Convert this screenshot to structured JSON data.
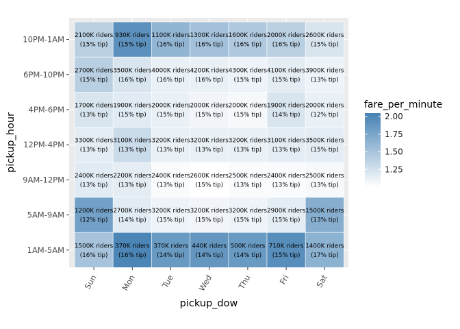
{
  "chart_data": {
    "type": "heatmap",
    "xlabel": "pickup_dow",
    "ylabel": "pickup_hour",
    "x_categories": [
      "Sun",
      "Mon",
      "Tue",
      "Wed",
      "Thu",
      "Fri",
      "Sat"
    ],
    "y_categories": [
      "10PM-1AM",
      "6PM-10PM",
      "4PM-6PM",
      "12PM-4PM",
      "9AM-12PM",
      "5AM-9AM",
      "1AM-5AM"
    ],
    "fill_variable": "fare_per_minute",
    "fill_range": [
      1.0,
      2.05
    ],
    "colors": {
      "low": "#ffffff",
      "high": "#4682b4",
      "panel": "#ebebeb"
    },
    "legend": {
      "title": "fare_per_minute",
      "ticks": [
        "2.00",
        "1.75",
        "1.50",
        "1.25"
      ],
      "tick_values": [
        2.0,
        1.75,
        1.5,
        1.25
      ],
      "placement": "right"
    },
    "grid": true,
    "cells": [
      [
        {
          "fare_per_minute": 1.4,
          "riders": "2100K riders",
          "tip": "(15% tip)"
        },
        {
          "fare_per_minute": 1.92,
          "riders": "930K riders",
          "tip": "(15% tip)"
        },
        {
          "fare_per_minute": 1.62,
          "riders": "1100K riders",
          "tip": "(16% tip)"
        },
        {
          "fare_per_minute": 1.52,
          "riders": "1300K riders",
          "tip": "(16% tip)"
        },
        {
          "fare_per_minute": 1.45,
          "riders": "1600K riders",
          "tip": "(16% tip)"
        },
        {
          "fare_per_minute": 1.4,
          "riders": "2000K riders",
          "tip": "(16% tip)"
        },
        {
          "fare_per_minute": 1.22,
          "riders": "2600K riders",
          "tip": "(15% tip)"
        }
      ],
      [
        {
          "fare_per_minute": 1.4,
          "riders": "2700K riders",
          "tip": "(15% tip)"
        },
        {
          "fare_per_minute": 1.22,
          "riders": "3500K riders",
          "tip": "(16% tip)"
        },
        {
          "fare_per_minute": 1.12,
          "riders": "4000K riders",
          "tip": "(16% tip)"
        },
        {
          "fare_per_minute": 1.12,
          "riders": "4200K riders",
          "tip": "(16% tip)"
        },
        {
          "fare_per_minute": 1.1,
          "riders": "4300K riders",
          "tip": "(15% tip)"
        },
        {
          "fare_per_minute": 1.15,
          "riders": "4100K riders",
          "tip": "(15% tip)"
        },
        {
          "fare_per_minute": 1.1,
          "riders": "3900K riders",
          "tip": "(13% tip)"
        }
      ],
      [
        {
          "fare_per_minute": 1.22,
          "riders": "1700K riders",
          "tip": "(13% tip)"
        },
        {
          "fare_per_minute": 1.17,
          "riders": "1900K riders",
          "tip": "(15% tip)"
        },
        {
          "fare_per_minute": 1.12,
          "riders": "2000K riders",
          "tip": "(15% tip)"
        },
        {
          "fare_per_minute": 1.08,
          "riders": "2000K riders",
          "tip": "(15% tip)"
        },
        {
          "fare_per_minute": 1.05,
          "riders": "2000K riders",
          "tip": "(15% tip)"
        },
        {
          "fare_per_minute": 1.22,
          "riders": "1900K riders",
          "tip": "(14% tip)"
        },
        {
          "fare_per_minute": 1.12,
          "riders": "2000K riders",
          "tip": "(12% tip)"
        }
      ],
      [
        {
          "fare_per_minute": 1.15,
          "riders": "3300K riders",
          "tip": "(13% tip)"
        },
        {
          "fare_per_minute": 1.3,
          "riders": "3100K riders",
          "tip": "(13% tip)"
        },
        {
          "fare_per_minute": 1.12,
          "riders": "3200K riders",
          "tip": "(13% tip)"
        },
        {
          "fare_per_minute": 1.12,
          "riders": "3200K riders",
          "tip": "(13% tip)"
        },
        {
          "fare_per_minute": 1.12,
          "riders": "3200K riders",
          "tip": "(13% tip)"
        },
        {
          "fare_per_minute": 1.15,
          "riders": "3100K riders",
          "tip": "(13% tip)"
        },
        {
          "fare_per_minute": 1.15,
          "riders": "3500K riders",
          "tip": "(15% tip)"
        }
      ],
      [
        {
          "fare_per_minute": 1.17,
          "riders": "2400K riders",
          "tip": "(13% tip)"
        },
        {
          "fare_per_minute": 1.15,
          "riders": "2200K riders",
          "tip": "(13% tip)"
        },
        {
          "fare_per_minute": 1.03,
          "riders": "2400K riders",
          "tip": "(13% tip)"
        },
        {
          "fare_per_minute": 1.0,
          "riders": "2600K riders",
          "tip": "(15% tip)"
        },
        {
          "fare_per_minute": 1.03,
          "riders": "2500K riders",
          "tip": "(13% tip)"
        },
        {
          "fare_per_minute": 1.03,
          "riders": "2400K riders",
          "tip": "(13% tip)"
        },
        {
          "fare_per_minute": 1.05,
          "riders": "2500K riders",
          "tip": "(13% tip)"
        }
      ],
      [
        {
          "fare_per_minute": 1.8,
          "riders": "1200K riders",
          "tip": "(12% tip)"
        },
        {
          "fare_per_minute": 1.17,
          "riders": "2700K riders",
          "tip": "(14% tip)"
        },
        {
          "fare_per_minute": 1.1,
          "riders": "3200K riders",
          "tip": "(15% tip)"
        },
        {
          "fare_per_minute": 1.08,
          "riders": "3200K riders",
          "tip": "(15% tip)"
        },
        {
          "fare_per_minute": 1.1,
          "riders": "3200K riders",
          "tip": "(15% tip)"
        },
        {
          "fare_per_minute": 1.15,
          "riders": "2900K riders",
          "tip": "(15% tip)"
        },
        {
          "fare_per_minute": 1.68,
          "riders": "1500K riders",
          "tip": "(13% tip)"
        }
      ],
      [
        {
          "fare_per_minute": 1.5,
          "riders": "1500K riders",
          "tip": "(16% tip)"
        },
        {
          "fare_per_minute": 2.02,
          "riders": "370K riders",
          "tip": "(16% tip)"
        },
        {
          "fare_per_minute": 1.85,
          "riders": "370K riders",
          "tip": "(14% tip)"
        },
        {
          "fare_per_minute": 1.88,
          "riders": "440K riders",
          "tip": "(14% tip)"
        },
        {
          "fare_per_minute": 1.85,
          "riders": "500K riders",
          "tip": "(14% tip)"
        },
        {
          "fare_per_minute": 1.95,
          "riders": "710K riders",
          "tip": "(15% tip)"
        },
        {
          "fare_per_minute": 1.65,
          "riders": "1400K riders",
          "tip": "(17% tip)"
        }
      ]
    ]
  }
}
